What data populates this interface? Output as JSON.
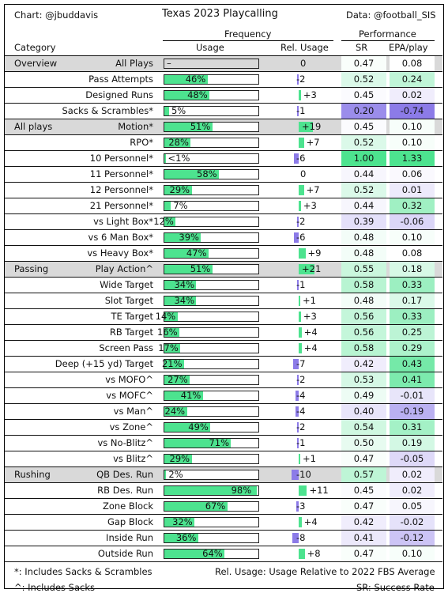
{
  "header": {
    "left": "Chart: @jbuddavis",
    "title": "Texas 2023 Playcalling",
    "right": "Data: @football_SIS",
    "group_frequency": "Frequency",
    "group_performance": "Performance",
    "col_category": "Category",
    "col_usage": "Usage",
    "col_rel": "Rel. Usage",
    "col_sr": "SR",
    "col_epa": "EPA/play"
  },
  "footer": {
    "note1": "*: Includes Sacks & Scrambles",
    "note2": "^: Includes Sacks",
    "note3": "Rel. Usage: Usage Relative to 2022 FBS Average",
    "note4": "SR: Success Rate"
  },
  "colors": {
    "usage": "#4de38f",
    "rel_pos": "#4de38f",
    "rel_neg": "#8c7be8",
    "band": "#d9d9d9"
  },
  "chart_data": {
    "type": "table",
    "title": "Texas 2023 Playcalling",
    "rows": [
      {
        "cat": "Overview",
        "label": "All Plays",
        "usage": null,
        "usage_text": "–",
        "rel": 0,
        "rel_text": "0",
        "sr": "0.47",
        "epa": "0.08",
        "sr_v": 0.47,
        "epa_v": 0.08,
        "band": true
      },
      {
        "cat": "",
        "label": "Pass Attempts",
        "usage": 46,
        "usage_text": "46%",
        "rel": -2,
        "rel_text": "-2",
        "sr": "0.52",
        "epa": "0.24",
        "sr_v": 0.52,
        "epa_v": 0.24
      },
      {
        "cat": "",
        "label": "Designed Runs",
        "usage": 48,
        "usage_text": "48%",
        "rel": 3,
        "rel_text": "+3",
        "sr": "0.45",
        "epa": "0.02",
        "sr_v": 0.45,
        "epa_v": 0.02
      },
      {
        "cat": "",
        "label": "Sacks & Scrambles*",
        "usage": 5,
        "usage_text": "5%",
        "rel": -1,
        "rel_text": "-1",
        "sr": "0.20",
        "epa": "-0.74",
        "sr_v": 0.2,
        "epa_v": -0.74
      },
      {
        "cat": "All plays",
        "label": "Motion*",
        "usage": 51,
        "usage_text": "51%",
        "rel": 19,
        "rel_text": "+19",
        "sr": "0.45",
        "epa": "0.10",
        "sr_v": 0.45,
        "epa_v": 0.1,
        "band": true
      },
      {
        "cat": "",
        "label": "RPO*",
        "usage": 28,
        "usage_text": "28%",
        "rel": 7,
        "rel_text": "+7",
        "sr": "0.52",
        "epa": "0.10",
        "sr_v": 0.52,
        "epa_v": 0.1
      },
      {
        "cat": "",
        "label": "10 Personnel*",
        "usage": 0.5,
        "usage_text": "<1%",
        "rel": -6,
        "rel_text": "-6",
        "sr": "1.00",
        "epa": "1.33",
        "sr_v": 1.0,
        "epa_v": 1.33
      },
      {
        "cat": "",
        "label": "11 Personnel*",
        "usage": 58,
        "usage_text": "58%",
        "rel": 0,
        "rel_text": "0",
        "sr": "0.44",
        "epa": "0.06",
        "sr_v": 0.44,
        "epa_v": 0.06
      },
      {
        "cat": "",
        "label": "12 Personnel*",
        "usage": 29,
        "usage_text": "29%",
        "rel": 7,
        "rel_text": "+7",
        "sr": "0.52",
        "epa": "0.01",
        "sr_v": 0.52,
        "epa_v": 0.01
      },
      {
        "cat": "",
        "label": "21 Personnel*",
        "usage": 7,
        "usage_text": "7%",
        "rel": 3,
        "rel_text": "+3",
        "sr": "0.44",
        "epa": "0.32",
        "sr_v": 0.44,
        "epa_v": 0.32
      },
      {
        "cat": "",
        "label": "vs Light Box*",
        "usage": 12,
        "usage_text": "12%",
        "rel": -2,
        "rel_text": "-2",
        "sr": "0.39",
        "epa": "-0.06",
        "sr_v": 0.39,
        "epa_v": -0.06
      },
      {
        "cat": "",
        "label": "vs 6 Man Box*",
        "usage": 39,
        "usage_text": "39%",
        "rel": -6,
        "rel_text": "-6",
        "sr": "0.48",
        "epa": "0.10",
        "sr_v": 0.48,
        "epa_v": 0.1
      },
      {
        "cat": "",
        "label": "vs Heavy Box*",
        "usage": 47,
        "usage_text": "47%",
        "rel": 9,
        "rel_text": "+9",
        "sr": "0.48",
        "epa": "0.08",
        "sr_v": 0.48,
        "epa_v": 0.08
      },
      {
        "cat": "Passing",
        "label": "Play Action^",
        "usage": 51,
        "usage_text": "51%",
        "rel": 21,
        "rel_text": "+21",
        "sr": "0.55",
        "epa": "0.18",
        "sr_v": 0.55,
        "epa_v": 0.18,
        "band": true
      },
      {
        "cat": "",
        "label": "Wide Target",
        "usage": 34,
        "usage_text": "34%",
        "rel": -1,
        "rel_text": "-1",
        "sr": "0.58",
        "epa": "0.33",
        "sr_v": 0.58,
        "epa_v": 0.33
      },
      {
        "cat": "",
        "label": "Slot Target",
        "usage": 34,
        "usage_text": "34%",
        "rel": 1,
        "rel_text": "+1",
        "sr": "0.48",
        "epa": "0.17",
        "sr_v": 0.48,
        "epa_v": 0.17
      },
      {
        "cat": "",
        "label": "TE Target",
        "usage": 14,
        "usage_text": "14%",
        "rel": 3,
        "rel_text": "+3",
        "sr": "0.56",
        "epa": "0.33",
        "sr_v": 0.56,
        "epa_v": 0.33
      },
      {
        "cat": "",
        "label": "RB Target",
        "usage": 16,
        "usage_text": "16%",
        "rel": 4,
        "rel_text": "+4",
        "sr": "0.56",
        "epa": "0.25",
        "sr_v": 0.56,
        "epa_v": 0.25
      },
      {
        "cat": "",
        "label": "Screen Pass",
        "usage": 17,
        "usage_text": "17%",
        "rel": 4,
        "rel_text": "+4",
        "sr": "0.58",
        "epa": "0.29",
        "sr_v": 0.58,
        "epa_v": 0.29
      },
      {
        "cat": "",
        "label": "Deep (+15 yd) Target",
        "usage": 21,
        "usage_text": "21%",
        "rel": -7,
        "rel_text": "-7",
        "sr": "0.42",
        "epa": "0.43",
        "sr_v": 0.42,
        "epa_v": 0.43
      },
      {
        "cat": "",
        "label": "vs MOFO^",
        "usage": 27,
        "usage_text": "27%",
        "rel": -2,
        "rel_text": "-2",
        "sr": "0.53",
        "epa": "0.41",
        "sr_v": 0.53,
        "epa_v": 0.41
      },
      {
        "cat": "",
        "label": "vs MOFC^",
        "usage": 41,
        "usage_text": "41%",
        "rel": -4,
        "rel_text": "-4",
        "sr": "0.49",
        "epa": "-0.01",
        "sr_v": 0.49,
        "epa_v": -0.01
      },
      {
        "cat": "",
        "label": "vs Man^",
        "usage": 24,
        "usage_text": "24%",
        "rel": -4,
        "rel_text": "-4",
        "sr": "0.40",
        "epa": "-0.19",
        "sr_v": 0.4,
        "epa_v": -0.19
      },
      {
        "cat": "",
        "label": "vs Zone^",
        "usage": 49,
        "usage_text": "49%",
        "rel": -2,
        "rel_text": "-2",
        "sr": "0.54",
        "epa": "0.31",
        "sr_v": 0.54,
        "epa_v": 0.31
      },
      {
        "cat": "",
        "label": "vs No-Blitz^",
        "usage": 71,
        "usage_text": "71%",
        "rel": -1,
        "rel_text": "-1",
        "sr": "0.50",
        "epa": "0.19",
        "sr_v": 0.5,
        "epa_v": 0.19
      },
      {
        "cat": "",
        "label": "vs Blitz^",
        "usage": 29,
        "usage_text": "29%",
        "rel": 1,
        "rel_text": "+1",
        "sr": "0.47",
        "epa": "-0.05",
        "sr_v": 0.47,
        "epa_v": -0.05
      },
      {
        "cat": "Rushing",
        "label": "QB Des. Run",
        "usage": 2,
        "usage_text": "2%",
        "rel": -10,
        "rel_text": "-10",
        "sr": "0.57",
        "epa": "0.02",
        "sr_v": 0.57,
        "epa_v": 0.02,
        "band": true
      },
      {
        "cat": "",
        "label": "RB Des. Run",
        "usage": 98,
        "usage_text": "98%",
        "rel": 11,
        "rel_text": "+11",
        "sr": "0.45",
        "epa": "0.02",
        "sr_v": 0.45,
        "epa_v": 0.02
      },
      {
        "cat": "",
        "label": "Zone Block",
        "usage": 67,
        "usage_text": "67%",
        "rel": -3,
        "rel_text": "-3",
        "sr": "0.47",
        "epa": "0.05",
        "sr_v": 0.47,
        "epa_v": 0.05
      },
      {
        "cat": "",
        "label": "Gap Block",
        "usage": 32,
        "usage_text": "32%",
        "rel": 4,
        "rel_text": "+4",
        "sr": "0.42",
        "epa": "-0.02",
        "sr_v": 0.42,
        "epa_v": -0.02
      },
      {
        "cat": "",
        "label": "Inside Run",
        "usage": 36,
        "usage_text": "36%",
        "rel": -8,
        "rel_text": "-8",
        "sr": "0.41",
        "epa": "-0.12",
        "sr_v": 0.41,
        "epa_v": -0.12
      },
      {
        "cat": "",
        "label": "Outside Run",
        "usage": 64,
        "usage_text": "64%",
        "rel": 8,
        "rel_text": "+8",
        "sr": "0.47",
        "epa": "0.10",
        "sr_v": 0.47,
        "epa_v": 0.1
      }
    ]
  }
}
